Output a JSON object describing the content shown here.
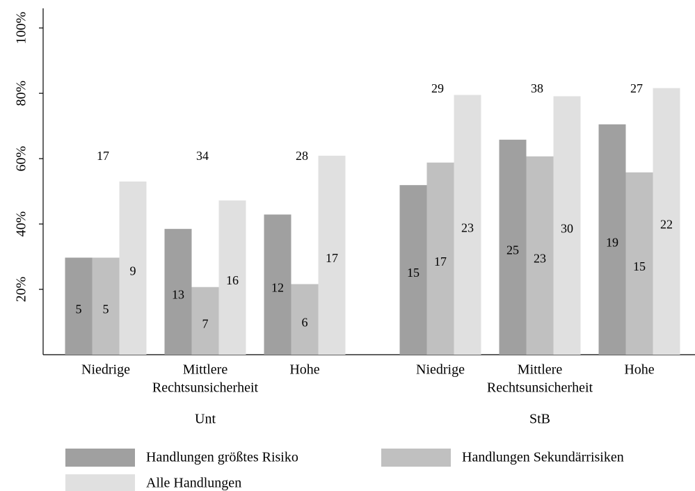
{
  "chart_data": {
    "type": "bar",
    "ylim": [
      0,
      106
    ],
    "yticks": [
      {
        "value": 20,
        "label": "20%"
      },
      {
        "value": 40,
        "label": "40%"
      },
      {
        "value": 60,
        "label": "60%"
      },
      {
        "value": 80,
        "label": "80%"
      },
      {
        "value": 100,
        "label": "100%"
      }
    ],
    "series": [
      {
        "name": "Handlungen größtes Risiko",
        "color": "#a0a0a0"
      },
      {
        "name": "Handlungen Sekundärrisiken",
        "color": "#c0c0c0"
      },
      {
        "name": "Alle Handlungen",
        "color": "#e0e0e0"
      }
    ],
    "panels": [
      {
        "title": "Unt",
        "xlabel": "Rechtsunsicherheit",
        "categories": [
          "Niedrige",
          "Mittlere",
          "Hohe"
        ],
        "values": [
          [
            29.7,
            38.5,
            42.9
          ],
          [
            29.7,
            20.7,
            21.6
          ],
          [
            53.0,
            47.2,
            60.9
          ]
        ],
        "counts": [
          [
            5,
            13,
            12
          ],
          [
            5,
            7,
            6
          ],
          [
            9,
            16,
            17
          ]
        ],
        "totals": [
          17,
          34,
          28
        ]
      },
      {
        "title": "StB",
        "xlabel": "Rechtsunsicherheit",
        "categories": [
          "Niedrige",
          "Mittlere",
          "Hohe"
        ],
        "values": [
          [
            51.9,
            65.8,
            70.5
          ],
          [
            58.8,
            60.7,
            55.8
          ],
          [
            79.5,
            79.1,
            81.6
          ]
        ],
        "counts": [
          [
            15,
            25,
            19
          ],
          [
            17,
            23,
            15
          ],
          [
            23,
            30,
            22
          ]
        ],
        "totals": [
          29,
          38,
          27
        ]
      }
    ]
  }
}
